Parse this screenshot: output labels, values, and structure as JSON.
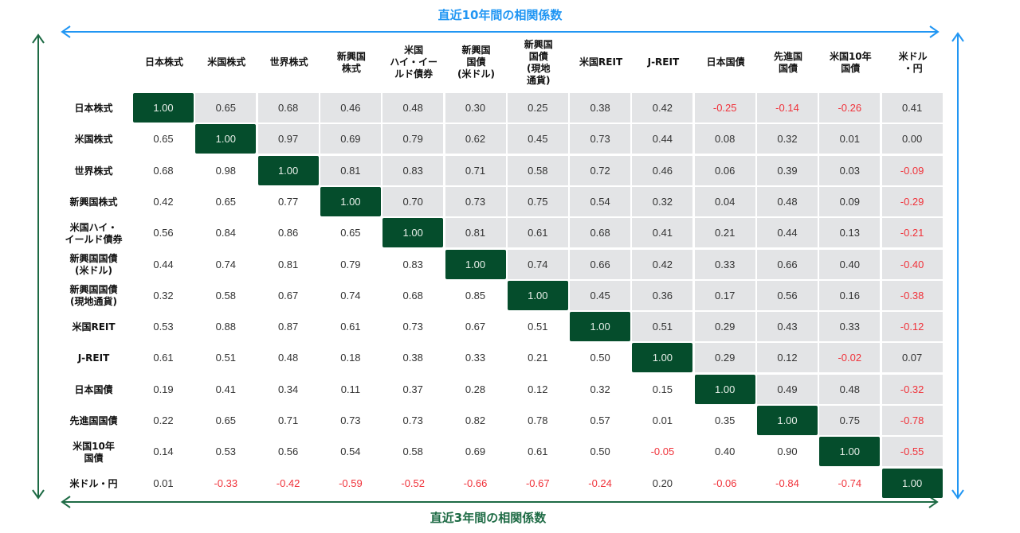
{
  "titles": {
    "upper_triangle": "直近10年間の相関係数",
    "lower_triangle": "直近3年間の相関係数"
  },
  "colors": {
    "upper_accent": "#2196f3",
    "lower_accent": "#1e6b45",
    "diagonal_fill": "#054d2c",
    "upper_cell_fill": "#e3e4e6",
    "negative_text": "#f0323a",
    "positive_text": "#333333"
  },
  "columns": [
    "日本株式",
    "米国株式",
    "世界株式",
    "新興国\n株式",
    "米国\nハイ・イー\nルド債券",
    "新興国\n国債\n(米ドル)",
    "新興国\n国債\n(現地\n通貨)",
    "米国REIT",
    "J-REIT",
    "日本国債",
    "先進国\n国債",
    "米国10年\n国債",
    "米ドル\n・円"
  ],
  "rows": [
    "日本株式",
    "米国株式",
    "世界株式",
    "新興国株式",
    "米国ハイ・\nイールド債券",
    "新興国国債\n(米ドル)",
    "新興国国債\n(現地通貨)",
    "米国REIT",
    "J-REIT",
    "日本国債",
    "先進国国債",
    "米国10年\n国債",
    "米ドル・円"
  ],
  "chart_data": {
    "type": "heatmap",
    "title": "相関係数行列（上三角：直近10年間、下三角：直近3年間）",
    "upper_label": "直近10年間の相関係数",
    "lower_label": "直近3年間の相関係数",
    "labels": [
      "日本株式",
      "米国株式",
      "世界株式",
      "新興国株式",
      "米国ハイ・イールド債券",
      "新興国国債(米ドル)",
      "新興国国債(現地通貨)",
      "米国REIT",
      "J-REIT",
      "日本国債",
      "先進国国債",
      "米国10年国債",
      "米ドル・円"
    ],
    "matrix": [
      [
        "1.00",
        "0.65",
        "0.68",
        "0.46",
        "0.48",
        "0.30",
        "0.25",
        "0.38",
        "0.42",
        "-0.25",
        "-0.14",
        "-0.26",
        "0.41"
      ],
      [
        "0.65",
        "1.00",
        "0.97",
        "0.69",
        "0.79",
        "0.62",
        "0.45",
        "0.73",
        "0.44",
        "0.08",
        "0.32",
        "0.01",
        "0.00"
      ],
      [
        "0.68",
        "0.98",
        "1.00",
        "0.81",
        "0.83",
        "0.71",
        "0.58",
        "0.72",
        "0.46",
        "0.06",
        "0.39",
        "0.03",
        "-0.09"
      ],
      [
        "0.42",
        "0.65",
        "0.77",
        "1.00",
        "0.70",
        "0.73",
        "0.75",
        "0.54",
        "0.32",
        "0.04",
        "0.48",
        "0.09",
        "-0.29"
      ],
      [
        "0.56",
        "0.84",
        "0.86",
        "0.65",
        "1.00",
        "0.81",
        "0.61",
        "0.68",
        "0.41",
        "0.21",
        "0.44",
        "0.13",
        "-0.21"
      ],
      [
        "0.44",
        "0.74",
        "0.81",
        "0.79",
        "0.83",
        "1.00",
        "0.74",
        "0.66",
        "0.42",
        "0.33",
        "0.66",
        "0.40",
        "-0.40"
      ],
      [
        "0.32",
        "0.58",
        "0.67",
        "0.74",
        "0.68",
        "0.85",
        "1.00",
        "0.45",
        "0.36",
        "0.17",
        "0.56",
        "0.16",
        "-0.38"
      ],
      [
        "0.53",
        "0.88",
        "0.87",
        "0.61",
        "0.73",
        "0.67",
        "0.51",
        "1.00",
        "0.51",
        "0.29",
        "0.43",
        "0.33",
        "-0.12"
      ],
      [
        "0.61",
        "0.51",
        "0.48",
        "0.18",
        "0.38",
        "0.33",
        "0.21",
        "0.50",
        "1.00",
        "0.29",
        "0.12",
        "-0.02",
        "0.07"
      ],
      [
        "0.19",
        "0.41",
        "0.34",
        "0.11",
        "0.37",
        "0.28",
        "0.12",
        "0.32",
        "0.15",
        "1.00",
        "0.49",
        "0.48",
        "-0.32"
      ],
      [
        "0.22",
        "0.65",
        "0.71",
        "0.73",
        "0.73",
        "0.82",
        "0.78",
        "0.57",
        "0.01",
        "0.35",
        "1.00",
        "0.75",
        "-0.78"
      ],
      [
        "0.14",
        "0.53",
        "0.56",
        "0.54",
        "0.58",
        "0.69",
        "0.61",
        "0.50",
        "-0.05",
        "0.40",
        "0.90",
        "1.00",
        "-0.55"
      ],
      [
        "0.01",
        "-0.33",
        "-0.42",
        "-0.59",
        "-0.52",
        "-0.66",
        "-0.67",
        "-0.24",
        "0.20",
        "-0.06",
        "-0.84",
        "-0.74",
        "1.00"
      ]
    ],
    "value_range": [
      -1,
      1
    ]
  }
}
